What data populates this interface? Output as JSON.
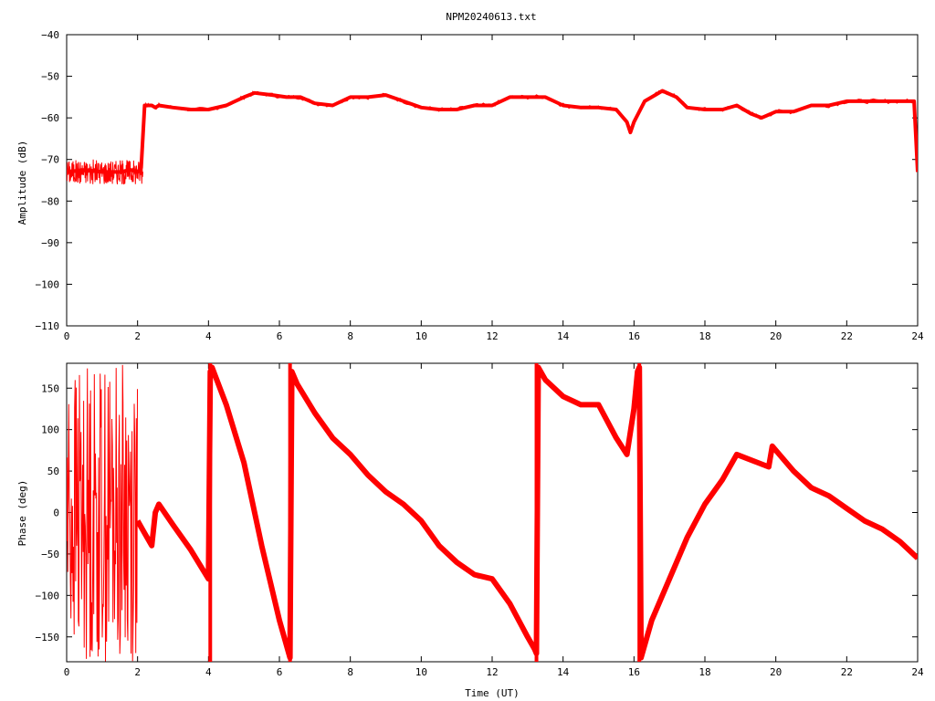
{
  "chart_data": [
    {
      "type": "line",
      "title": "NPM20240613.txt",
      "xlabel": "",
      "ylabel": "Amplitude (dB)",
      "xlim": [
        0,
        24
      ],
      "ylim": [
        -110,
        -40
      ],
      "xticks": [
        "0",
        "2",
        "4",
        "6",
        "8",
        "10",
        "12",
        "14",
        "16",
        "18",
        "20",
        "22",
        "24"
      ],
      "yticks": [
        "-40",
        "-50",
        "-60",
        "-70",
        "-80",
        "-90",
        "-100",
        "-110"
      ],
      "color": "#ff0000",
      "series": [
        {
          "x": [
            0,
            0.5,
            1,
            1.5,
            1.8,
            2.0,
            2.1,
            2.2,
            2.4,
            2.5,
            2.6,
            3.0,
            3.5,
            4.0,
            4.5,
            5.0,
            5.3,
            5.8,
            6.2,
            6.6,
            7.0,
            7.5,
            8.0,
            8.5,
            9.0,
            9.5,
            10.0,
            10.5,
            11.0,
            11.5,
            12.0,
            12.5,
            13.0,
            13.5,
            14.0,
            14.5,
            15.0,
            15.5,
            15.8,
            15.9,
            16.0,
            16.3,
            16.6,
            16.8,
            17.2,
            17.5,
            18.0,
            18.5,
            18.9,
            19.3,
            19.6,
            20.0,
            20.5,
            21.0,
            21.5,
            22.0,
            22.5,
            23.0,
            23.5,
            23.9,
            24.0
          ],
          "y": [
            -73,
            -72.5,
            -73,
            -73,
            -72.5,
            -73,
            -72,
            -57,
            -57,
            -57.5,
            -57,
            -57.5,
            -58,
            -58,
            -57,
            -55,
            -54,
            -54.5,
            -55,
            -55,
            -56.5,
            -57,
            -55,
            -55,
            -54.5,
            -56,
            -57.5,
            -58,
            -58,
            -57,
            -57,
            -55,
            -55,
            -55,
            -57,
            -57.5,
            -57.5,
            -58,
            -61,
            -63.5,
            -61,
            -56,
            -54.5,
            -53.5,
            -55,
            -57.5,
            -58,
            -58,
            -57,
            -59,
            -60,
            -58.5,
            -58.5,
            -57,
            -57,
            -56,
            -56,
            -56,
            -56,
            -56,
            -73
          ]
        }
      ]
    },
    {
      "type": "line",
      "title": "",
      "xlabel": "Time (UT)",
      "ylabel": "Phase (deg)",
      "xlim": [
        0,
        24
      ],
      "ylim": [
        -180,
        180
      ],
      "xticks": [
        "0",
        "2",
        "4",
        "6",
        "8",
        "10",
        "12",
        "14",
        "16",
        "18",
        "20",
        "22",
        "24"
      ],
      "yticks": [
        "150",
        "100",
        "50",
        "0",
        "-50",
        "-100",
        "-150"
      ],
      "color": "#ff0000",
      "series": [
        {
          "x": [
            2.0,
            2.2,
            2.4,
            2.5,
            2.6,
            3.0,
            3.5,
            4.0,
            4.05,
            4.1,
            4.5,
            5.0,
            5.5,
            6.0,
            6.3,
            6.35,
            6.5,
            7.0,
            7.5,
            8.0,
            8.5,
            9.0,
            9.5,
            10.0,
            10.5,
            11.0,
            11.5,
            12.0,
            12.5,
            13.0,
            13.2,
            13.25,
            13.3,
            13.5,
            14.0,
            14.5,
            15.0,
            15.5,
            15.8,
            16.0,
            16.1,
            16.15,
            16.2,
            16.5,
            17.0,
            17.5,
            18.0,
            18.5,
            18.9,
            19.5,
            19.8,
            19.9,
            20.5,
            21.0,
            21.5,
            22.0,
            22.5,
            23.0,
            23.5,
            24.0
          ],
          "y": [
            -10,
            -25,
            -40,
            0,
            10,
            -15,
            -45,
            -80,
            170,
            175,
            130,
            60,
            -40,
            -130,
            -175,
            170,
            155,
            120,
            90,
            70,
            45,
            25,
            10,
            -10,
            -40,
            -60,
            -75,
            -80,
            -110,
            -150,
            -165,
            -170,
            175,
            160,
            140,
            130,
            130,
            90,
            70,
            125,
            170,
            175,
            -175,
            -130,
            -80,
            -30,
            10,
            40,
            70,
            60,
            55,
            80,
            50,
            30,
            20,
            5,
            -10,
            -20,
            -35,
            -55
          ]
        }
      ]
    }
  ]
}
